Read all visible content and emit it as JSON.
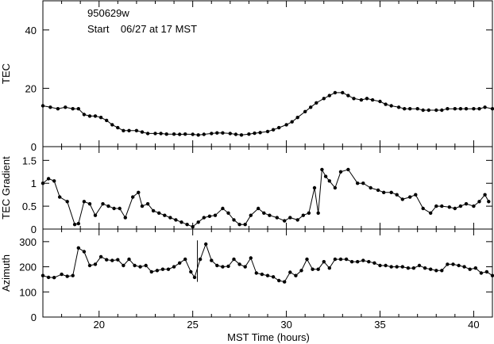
{
  "figure": {
    "annotation_id": "950629w",
    "annotation_start": "Start    06/27 at 17 MST",
    "xlabel": "MST Time (hours)"
  },
  "chart_data": [
    {
      "type": "line",
      "ylabel": "TEC",
      "xlim": [
        17,
        41
      ],
      "ylim": [
        0,
        50
      ],
      "x_ticks": [
        20,
        25,
        30,
        35,
        40
      ],
      "y_ticks": [
        0,
        20,
        40
      ],
      "series": [
        {
          "x": [
            17.0,
            17.4,
            17.8,
            18.2,
            18.6,
            18.9,
            19.2,
            19.5,
            19.8,
            20.1,
            20.4,
            20.7,
            21.0,
            21.3,
            21.6,
            22.0,
            22.3,
            22.6,
            23.0,
            23.3,
            23.6,
            24.0,
            24.3,
            24.6,
            25.0,
            25.3,
            25.6,
            26.0,
            26.3,
            26.6,
            27.0,
            27.3,
            27.6,
            28.0,
            28.3,
            28.6,
            29.0,
            29.3,
            29.6,
            30.0,
            30.3,
            30.6,
            31.0,
            31.3,
            31.6,
            32.0,
            32.3,
            32.6,
            33.0,
            33.3,
            33.6,
            34.0,
            34.3,
            34.6,
            35.0,
            35.3,
            35.6,
            36.0,
            36.3,
            36.6,
            37.0,
            37.3,
            37.6,
            38.0,
            38.3,
            38.6,
            39.0,
            39.3,
            39.6,
            40.0,
            40.3,
            40.6,
            41.0
          ],
          "y": [
            14,
            13.5,
            13,
            13.5,
            13,
            13,
            11,
            10.5,
            10.5,
            10,
            9,
            7.5,
            6.5,
            5.5,
            5.5,
            5.5,
            5,
            4.5,
            4.5,
            4.5,
            4.3,
            4.3,
            4.2,
            4.3,
            4.2,
            4,
            4.2,
            4.5,
            4.7,
            4.7,
            4.5,
            4.2,
            4,
            4.3,
            4.6,
            4.8,
            5.2,
            5.8,
            6.5,
            7.5,
            8.5,
            10,
            12,
            13.5,
            15,
            16.5,
            17.5,
            18.5,
            18.5,
            17.5,
            16.5,
            16,
            16.5,
            16,
            15.5,
            14.5,
            14,
            13.5,
            13,
            13,
            13,
            12.5,
            12.5,
            12.5,
            12.5,
            13,
            13,
            13,
            13,
            13,
            13,
            13.5,
            13
          ]
        }
      ]
    },
    {
      "type": "line",
      "ylabel": "TEC Gradient",
      "xlim": [
        17,
        41
      ],
      "ylim": [
        0,
        1.8
      ],
      "x_ticks": [
        20,
        25,
        30,
        35,
        40
      ],
      "y_ticks": [
        0,
        0.5,
        1,
        1.5
      ],
      "series": [
        {
          "x": [
            17.0,
            17.3,
            17.6,
            17.9,
            18.3,
            18.7,
            18.9,
            19.2,
            19.5,
            19.8,
            20.2,
            20.5,
            20.8,
            21.1,
            21.4,
            21.8,
            22.1,
            22.3,
            22.6,
            22.9,
            23.2,
            23.5,
            23.8,
            24.1,
            24.4,
            24.7,
            25.0,
            25.3,
            25.6,
            25.9,
            26.2,
            26.6,
            26.9,
            27.2,
            27.5,
            27.8,
            28.1,
            28.5,
            28.8,
            29.1,
            29.5,
            29.9,
            30.2,
            30.6,
            30.9,
            31.2,
            31.5,
            31.7,
            31.9,
            32.1,
            32.3,
            32.6,
            32.9,
            33.3,
            33.8,
            34.1,
            34.5,
            34.9,
            35.2,
            35.6,
            35.9,
            36.2,
            36.6,
            36.9,
            37.3,
            37.7,
            38.0,
            38.3,
            38.7,
            39.0,
            39.3,
            39.6,
            40.0,
            40.3,
            40.6,
            40.8
          ],
          "y": [
            1.0,
            1.1,
            1.05,
            0.7,
            0.6,
            0.1,
            0.12,
            0.6,
            0.55,
            0.3,
            0.55,
            0.5,
            0.45,
            0.45,
            0.25,
            0.7,
            0.8,
            0.5,
            0.55,
            0.4,
            0.35,
            0.3,
            0.25,
            0.2,
            0.15,
            0.1,
            0.05,
            0.15,
            0.25,
            0.28,
            0.3,
            0.45,
            0.35,
            0.2,
            0.1,
            0.1,
            0.3,
            0.45,
            0.35,
            0.3,
            0.25,
            0.18,
            0.25,
            0.2,
            0.3,
            0.35,
            0.9,
            0.35,
            1.3,
            1.15,
            1.05,
            0.9,
            1.25,
            1.3,
            1.0,
            1.0,
            0.9,
            0.85,
            0.8,
            0.8,
            0.75,
            0.65,
            0.7,
            0.75,
            0.45,
            0.35,
            0.5,
            0.5,
            0.48,
            0.45,
            0.5,
            0.55,
            0.5,
            0.6,
            0.75,
            0.6
          ]
        }
      ]
    },
    {
      "type": "line",
      "ylabel": "Azimuth",
      "xlim": [
        17,
        41
      ],
      "ylim": [
        0,
        350
      ],
      "x_ticks": [
        20,
        25,
        30,
        35,
        40
      ],
      "y_ticks": [
        0,
        100,
        200,
        300
      ],
      "series": [
        {
          "x": [
            17.0,
            17.3,
            17.6,
            18.0,
            18.3,
            18.6,
            18.9,
            19.2,
            19.5,
            19.8,
            20.1,
            20.4,
            20.7,
            21.0,
            21.3,
            21.6,
            21.9,
            22.2,
            22.5,
            22.8,
            23.1,
            23.4,
            23.7,
            24.0,
            24.3,
            24.6,
            24.9,
            25.1,
            25.4,
            25.7,
            26.0,
            26.3,
            26.6,
            26.9,
            27.2,
            27.5,
            27.8,
            28.1,
            28.4,
            28.7,
            29.0,
            29.3,
            29.6,
            29.9,
            30.2,
            30.5,
            30.8,
            31.1,
            31.4,
            31.7,
            32.0,
            32.3,
            32.6,
            32.9,
            33.2,
            33.5,
            33.8,
            34.1,
            34.4,
            34.7,
            35.0,
            35.3,
            35.6,
            35.9,
            36.2,
            36.5,
            36.8,
            37.1,
            37.4,
            37.7,
            38.0,
            38.3,
            38.6,
            38.9,
            39.2,
            39.5,
            39.8,
            40.1,
            40.4,
            40.7,
            41.0
          ],
          "y": [
            165,
            158,
            157,
            170,
            162,
            165,
            275,
            260,
            205,
            210,
            240,
            228,
            225,
            228,
            205,
            230,
            205,
            200,
            205,
            180,
            185,
            190,
            190,
            200,
            215,
            230,
            180,
            158,
            230,
            290,
            225,
            205,
            200,
            202,
            230,
            210,
            200,
            235,
            175,
            170,
            165,
            160,
            145,
            140,
            178,
            165,
            185,
            230,
            190,
            190,
            220,
            195,
            230,
            230,
            230,
            220,
            220,
            225,
            220,
            215,
            205,
            205,
            200,
            200,
            200,
            195,
            195,
            205,
            195,
            190,
            185,
            185,
            210,
            210,
            205,
            200,
            190,
            195,
            175,
            180,
            165
          ]
        }
      ],
      "vertical_marks": [
        {
          "x": 25.25,
          "y_range": [
            140,
            305
          ]
        }
      ]
    }
  ]
}
